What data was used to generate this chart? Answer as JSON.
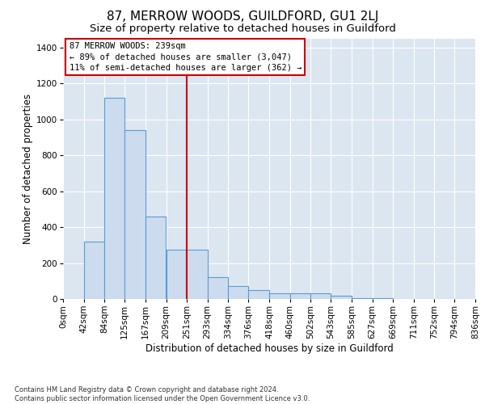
{
  "title": "87, MERROW WOODS, GUILDFORD, GU1 2LJ",
  "subtitle": "Size of property relative to detached houses in Guildford",
  "xlabel": "Distribution of detached houses by size in Guildford",
  "ylabel": "Number of detached properties",
  "footer_line1": "Contains HM Land Registry data © Crown copyright and database right 2024.",
  "footer_line2": "Contains public sector information licensed under the Open Government Licence v3.0.",
  "bin_labels": [
    "0sqm",
    "42sqm",
    "84sqm",
    "125sqm",
    "167sqm",
    "209sqm",
    "251sqm",
    "293sqm",
    "334sqm",
    "376sqm",
    "418sqm",
    "460sqm",
    "502sqm",
    "543sqm",
    "585sqm",
    "627sqm",
    "669sqm",
    "711sqm",
    "752sqm",
    "794sqm",
    "836sqm"
  ],
  "bar_values": [
    0,
    320,
    1120,
    940,
    460,
    275,
    275,
    120,
    70,
    50,
    30,
    30,
    30,
    20,
    5,
    5,
    0,
    0,
    0,
    0
  ],
  "bin_edges": [
    0,
    42,
    84,
    125,
    167,
    209,
    251,
    293,
    334,
    376,
    418,
    460,
    502,
    543,
    585,
    627,
    669,
    711,
    752,
    794,
    836
  ],
  "bar_color": "#ccdcee",
  "bar_edge_color": "#5b9bd5",
  "vline_x": 251,
  "vline_color": "#cc0000",
  "ylim": [
    0,
    1450
  ],
  "yticks": [
    0,
    200,
    400,
    600,
    800,
    1000,
    1200,
    1400
  ],
  "annotation_line1": "87 MERROW WOODS: 239sqm",
  "annotation_line2": "← 89% of detached houses are smaller (3,047)",
  "annotation_line3": "11% of semi-detached houses are larger (362) →",
  "annotation_box_color": "#ffffff",
  "annotation_box_edge_color": "#cc0000",
  "bg_color": "#dce6f1",
  "title_fontsize": 11,
  "subtitle_fontsize": 9.5,
  "axis_label_fontsize": 8.5,
  "tick_fontsize": 7.5,
  "annotation_fontsize": 7.5
}
